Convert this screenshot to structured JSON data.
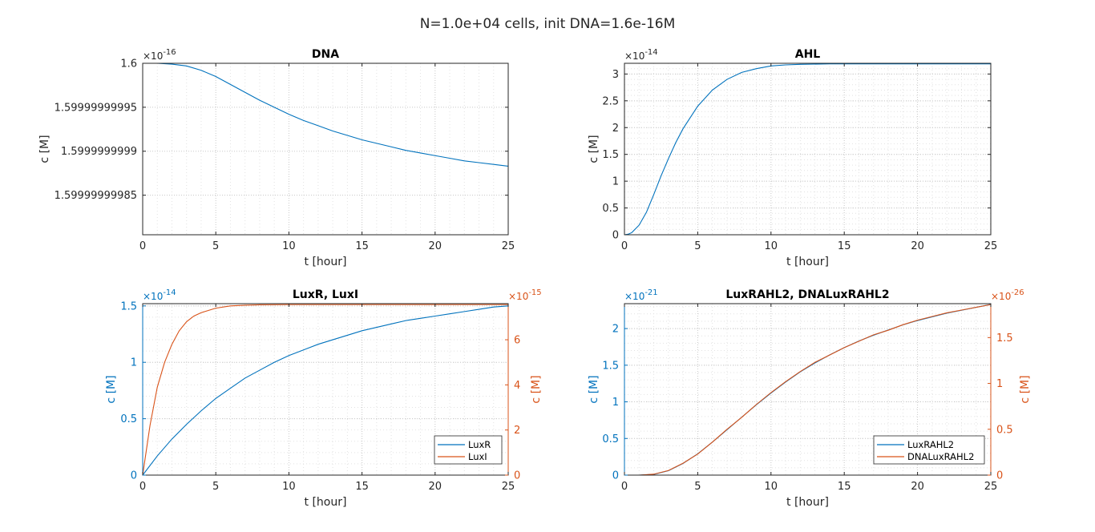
{
  "figure": {
    "suptitle": "N=1.0e+04 cells, init DNA=1.6e-16M"
  },
  "colors": {
    "blue": "#0072BD",
    "orange": "#D95319",
    "axis": "#262626",
    "grid_major": "#c8c8c8",
    "grid_minor": "#e2e2e2"
  },
  "chart_data": [
    {
      "type": "line",
      "title": "DNA",
      "xlabel": "t [hour]",
      "ylabel": "c [M]",
      "xlim": [
        0,
        25
      ],
      "ylim": [
        1.599999999805e-16,
        1.6e-16
      ],
      "x_ticks": [
        0,
        5,
        10,
        15,
        20,
        25
      ],
      "x_ticklabels": [
        "0",
        "5",
        "10",
        "15",
        "20",
        "25"
      ],
      "y_ticks": [
        1.59999999985,
        1.5999999999,
        1.59999999995,
        1.6
      ],
      "y_ticklabels": [
        "1.59999999985",
        "1.5999999999",
        "1.59999999995",
        "1.6"
      ],
      "y_exponent": "-16",
      "grid": true,
      "series": [
        {
          "color": "blue",
          "axis": "left",
          "x": [
            0,
            1,
            2,
            3,
            4,
            5,
            6,
            7,
            8,
            9,
            10,
            11,
            12,
            13,
            14,
            15,
            16,
            17,
            18,
            19,
            20,
            21,
            22,
            23,
            24,
            25
          ],
          "y": [
            1.6,
            1.6,
            1.599999999999,
            1.599999999997,
            1.599999999992,
            1.599999999985,
            1.599999999976,
            1.599999999967,
            1.599999999958,
            1.59999999995,
            1.599999999942,
            1.599999999935,
            1.599999999929,
            1.599999999923,
            1.599999999918,
            1.599999999913,
            1.599999999909,
            1.599999999905,
            1.599999999901,
            1.599999999898,
            1.599999999895,
            1.599999999892,
            1.599999999889,
            1.599999999887,
            1.599999999885,
            1.599999999883
          ]
        }
      ]
    },
    {
      "type": "line",
      "title": "AHL",
      "xlabel": "t [hour]",
      "ylabel": "c [M]",
      "xlim": [
        0,
        25
      ],
      "ylim": [
        0,
        3.2
      ],
      "x_ticks": [
        0,
        5,
        10,
        15,
        20,
        25
      ],
      "x_ticklabels": [
        "0",
        "5",
        "10",
        "15",
        "20",
        "25"
      ],
      "y_ticks": [
        0,
        0.5,
        1,
        1.5,
        2,
        2.5,
        3
      ],
      "y_ticklabels": [
        "0",
        "0.5",
        "1",
        "1.5",
        "2",
        "2.5",
        "3"
      ],
      "y_exponent": "-14",
      "grid": true,
      "series": [
        {
          "color": "blue",
          "axis": "left",
          "x": [
            0,
            0.25,
            0.5,
            1,
            1.5,
            2,
            2.5,
            3,
            3.5,
            4,
            5,
            6,
            7,
            8,
            9,
            10,
            11,
            12,
            14,
            16,
            18,
            20,
            25
          ],
          "y": [
            0,
            0.01,
            0.04,
            0.18,
            0.42,
            0.75,
            1.1,
            1.42,
            1.72,
            1.98,
            2.4,
            2.7,
            2.9,
            3.03,
            3.1,
            3.15,
            3.17,
            3.18,
            3.19,
            3.19,
            3.19,
            3.19,
            3.19
          ]
        }
      ]
    },
    {
      "type": "line",
      "title": "LuxR, LuxI",
      "xlabel": "t [hour]",
      "ylabel": "c [M]",
      "ylabel_right": "c [M]",
      "xlim": [
        0,
        25
      ],
      "ylim": [
        0,
        1.52
      ],
      "ylim_right": [
        0,
        7.6
      ],
      "x_ticks": [
        0,
        5,
        10,
        15,
        20,
        25
      ],
      "x_ticklabels": [
        "0",
        "5",
        "10",
        "15",
        "20",
        "25"
      ],
      "y_ticks": [
        0,
        0.5,
        1,
        1.5
      ],
      "y_ticklabels": [
        "0",
        "0.5",
        "1",
        "1.5"
      ],
      "y_ticks_right": [
        0,
        2,
        4,
        6
      ],
      "y_ticklabels_right": [
        "0",
        "2",
        "4",
        "6"
      ],
      "y_exponent": "-14",
      "y_exponent_right": "-15",
      "grid": true,
      "legend_position": "bottom-right",
      "legend": [
        "LuxR",
        "LuxI"
      ],
      "series": [
        {
          "name": "LuxR",
          "color": "blue",
          "axis": "left",
          "x": [
            0,
            1,
            2,
            3,
            4,
            5,
            6,
            7,
            8,
            9,
            10,
            11,
            12,
            13,
            14,
            15,
            16,
            17,
            18,
            19,
            20,
            21,
            22,
            23,
            24,
            25
          ],
          "y": [
            0,
            0.17,
            0.32,
            0.45,
            0.57,
            0.68,
            0.77,
            0.86,
            0.93,
            1.0,
            1.06,
            1.11,
            1.16,
            1.2,
            1.24,
            1.28,
            1.31,
            1.34,
            1.37,
            1.39,
            1.41,
            1.43,
            1.45,
            1.47,
            1.49,
            1.5
          ]
        },
        {
          "name": "LuxI",
          "color": "orange",
          "axis": "right",
          "x": [
            0,
            0.5,
            1,
            1.5,
            2,
            2.5,
            3,
            3.5,
            4,
            5,
            6,
            7,
            8,
            10,
            12,
            15,
            20,
            25
          ],
          "y": [
            0,
            2.2,
            3.9,
            5.0,
            5.8,
            6.4,
            6.8,
            7.05,
            7.2,
            7.4,
            7.5,
            7.53,
            7.55,
            7.56,
            7.56,
            7.56,
            7.56,
            7.56
          ]
        }
      ]
    },
    {
      "type": "line",
      "title": "LuxRAHL2, DNALuxRAHL2",
      "xlabel": "t [hour]",
      "ylabel": "c [M]",
      "ylabel_right": "c [M]",
      "xlim": [
        0,
        25
      ],
      "ylim": [
        0,
        2.34
      ],
      "ylim_right": [
        0,
        1.87
      ],
      "x_ticks": [
        0,
        5,
        10,
        15,
        20,
        25
      ],
      "x_ticklabels": [
        "0",
        "5",
        "10",
        "15",
        "20",
        "25"
      ],
      "y_ticks": [
        0,
        0.5,
        1,
        1.5,
        2
      ],
      "y_ticklabels": [
        "0",
        "0.5",
        "1",
        "1.5",
        "2"
      ],
      "y_ticks_right": [
        0,
        0.5,
        1,
        1.5
      ],
      "y_ticklabels_right": [
        "0",
        "0.5",
        "1",
        "1.5"
      ],
      "y_exponent": "-21",
      "y_exponent_right": "-26",
      "grid": true,
      "legend_position": "bottom-right",
      "legend": [
        "LuxRAHL2",
        "DNALuxRAHL2"
      ],
      "series": [
        {
          "name": "LuxRAHL2",
          "color": "blue",
          "axis": "left",
          "x": [
            0,
            1,
            2,
            3,
            4,
            5,
            6,
            7,
            8,
            9,
            10,
            11,
            12,
            13,
            14,
            15,
            16,
            17,
            18,
            19,
            20,
            21,
            22,
            23,
            24,
            25
          ],
          "y": [
            0,
            0.0,
            0.01,
            0.06,
            0.16,
            0.29,
            0.45,
            0.62,
            0.79,
            0.96,
            1.12,
            1.27,
            1.41,
            1.53,
            1.64,
            1.74,
            1.83,
            1.91,
            1.98,
            2.05,
            2.11,
            2.16,
            2.21,
            2.25,
            2.29,
            2.33
          ]
        },
        {
          "name": "DNALuxRAHL2",
          "color": "orange",
          "axis": "right",
          "x": [
            0,
            1,
            2,
            3,
            4,
            5,
            6,
            7,
            8,
            9,
            10,
            11,
            12,
            13,
            14,
            15,
            16,
            17,
            18,
            19,
            20,
            21,
            22,
            23,
            24,
            25
          ],
          "y": [
            0,
            0.0,
            0.01,
            0.05,
            0.13,
            0.23,
            0.36,
            0.5,
            0.63,
            0.77,
            0.9,
            1.02,
            1.13,
            1.23,
            1.31,
            1.39,
            1.46,
            1.53,
            1.58,
            1.64,
            1.69,
            1.73,
            1.77,
            1.8,
            1.83,
            1.86
          ]
        }
      ]
    }
  ]
}
